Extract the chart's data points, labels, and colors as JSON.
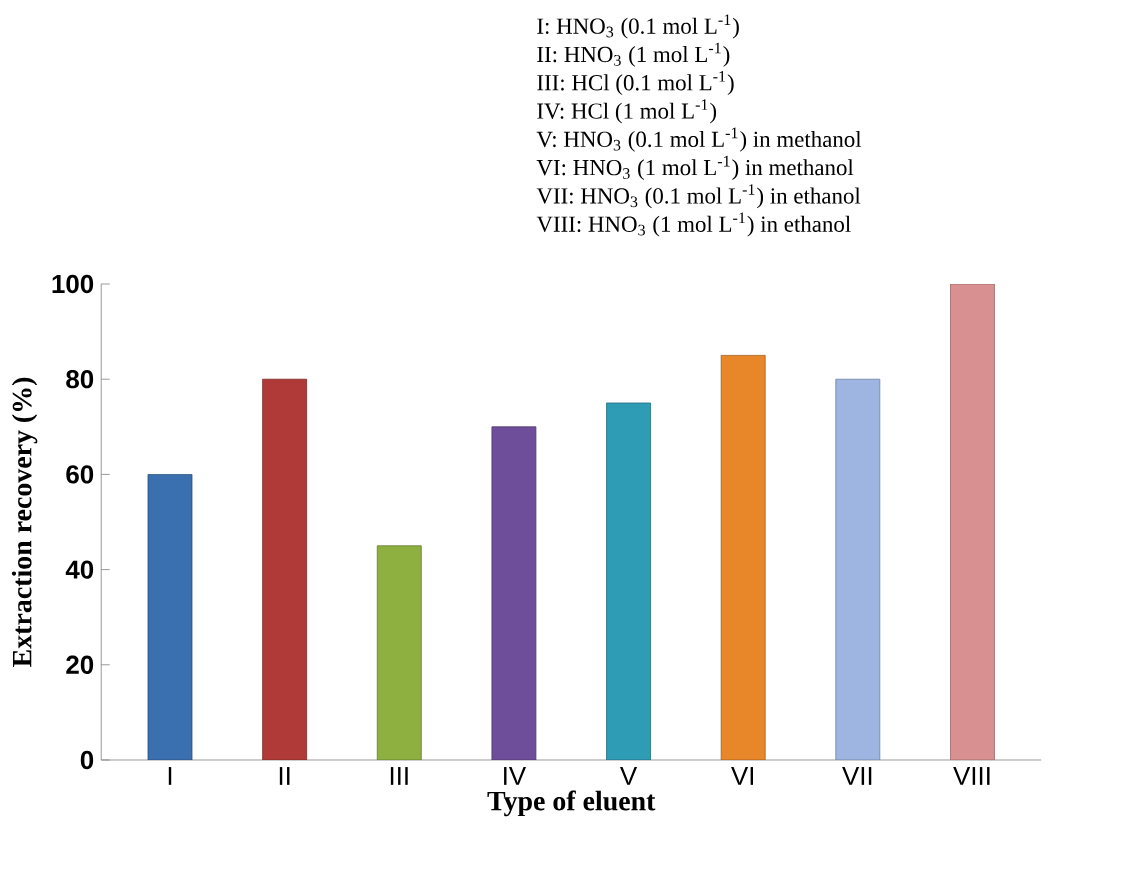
{
  "chart_data": {
    "type": "bar",
    "xlabel": "Type of eluent",
    "ylabel": "Extraction recovery (%)",
    "categories": [
      "I",
      "II",
      "III",
      "IV",
      "V",
      "VI",
      "VII",
      "VIII"
    ],
    "values": [
      60,
      80,
      45,
      70,
      75,
      85,
      80,
      100
    ],
    "colors": [
      "#3a6fb0",
      "#b03a38",
      "#8db040",
      "#6e4e9a",
      "#2e9cb5",
      "#e8862a",
      "#9db5e0",
      "#d99090"
    ],
    "ylim": [
      0,
      100
    ],
    "yticks": [
      0,
      20,
      40,
      60,
      80,
      100
    ],
    "annotations": [
      "I: HNO$_{3}$ (0.1 mol L$^{-1}$)",
      "II: HNO$_{3}$ (1 mol L$^{-1}$)",
      "III: HCl (0.1 mol L$^{-1}$)",
      "IV: HCl (1 mol L$^{-1}$)",
      "V: HNO$_{3}$ (0.1 mol L$^{-1}$) in methanol",
      "VI: HNO$_{3}$ (1 mol L$^{-1}$) in methanol",
      "VII: HNO$_{3}$ (0.1 mol L$^{-1}$) in ethanol",
      "VIII: HNO$_{3}$ (1 mol L$^{-1}$) in ethanol"
    ]
  }
}
